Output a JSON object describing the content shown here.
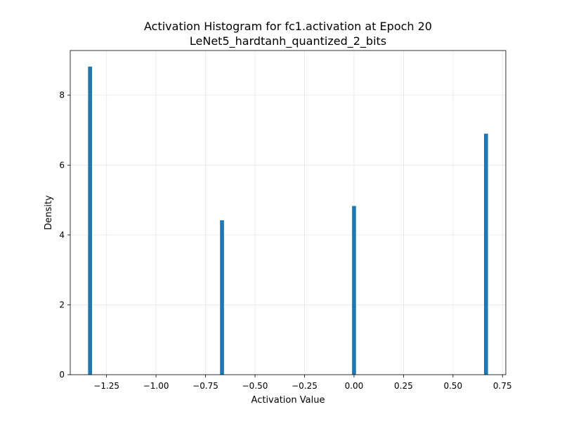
{
  "chart_data": {
    "type": "bar",
    "title": "Activation Histogram for fc1.activation at Epoch 20",
    "subtitle": "LeNet5_hardtanh_quantized_2_bits",
    "xlabel": "Activation Value",
    "ylabel": "Density",
    "xlim": [
      -1.4333,
      0.7667
    ],
    "ylim": [
      0,
      9.28
    ],
    "xticks": [
      -1.25,
      -1.0,
      -0.75,
      -0.5,
      -0.25,
      0.0,
      0.25,
      0.5,
      0.75
    ],
    "xtick_labels": [
      "−1.25",
      "−1.00",
      "−0.75",
      "−0.50",
      "−0.25",
      "0.00",
      "0.25",
      "0.50",
      "0.75"
    ],
    "yticks": [
      0,
      2,
      4,
      6,
      8
    ],
    "ytick_labels": [
      "0",
      "2",
      "4",
      "6",
      "8"
    ],
    "bin_width": 0.02,
    "bars": [
      {
        "x": -1.3333,
        "value": 8.82
      },
      {
        "x": -0.6667,
        "value": 4.42
      },
      {
        "x": 0.0,
        "value": 4.83
      },
      {
        "x": 0.6667,
        "value": 6.9
      }
    ],
    "bar_color": "#1f77b4",
    "grid": true
  }
}
